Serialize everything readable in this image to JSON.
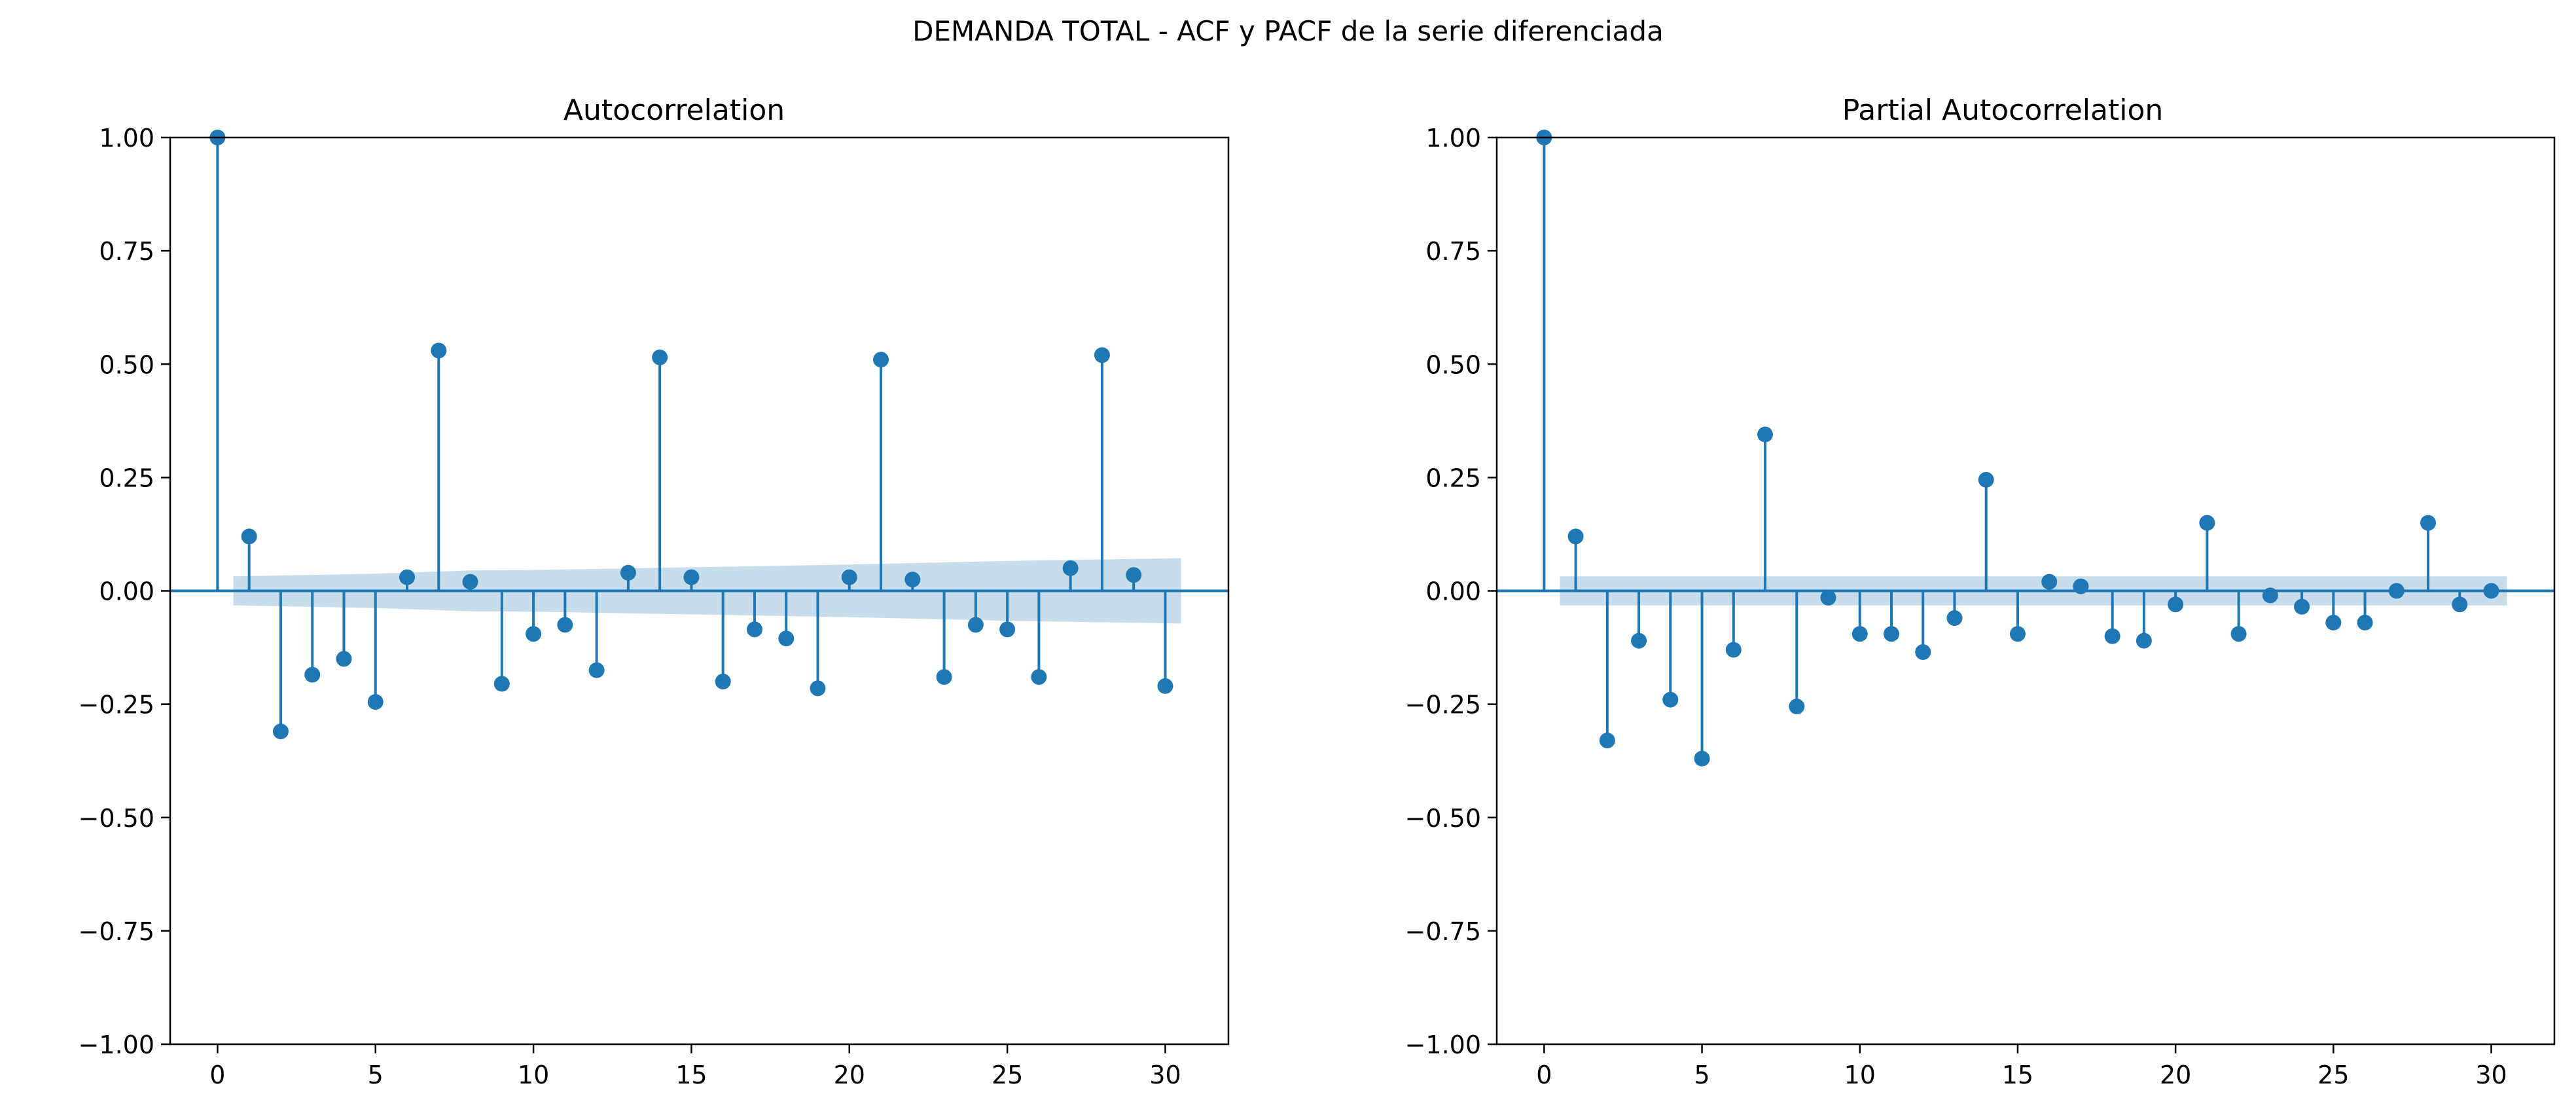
{
  "figure": {
    "suptitle": "DEMANDA TOTAL - ACF y PACF de la serie diferenciada"
  },
  "colors": {
    "stem": "#1f77b4",
    "band": "#1f77b4",
    "axis": "#000000",
    "background": "#ffffff"
  },
  "chart_data": [
    {
      "type": "stem",
      "title": "Autocorrelation",
      "xlabel": "",
      "ylabel": "",
      "xlim": [
        -1.5,
        32.0
      ],
      "ylim": [
        -1.0,
        1.0
      ],
      "xticks": [
        0,
        5,
        10,
        15,
        20,
        25,
        30
      ],
      "yticks": [
        -1.0,
        -0.75,
        -0.5,
        -0.25,
        0.0,
        0.25,
        0.5,
        0.75,
        1.0
      ],
      "xtick_labels": [
        "0",
        "5",
        "10",
        "15",
        "20",
        "25",
        "30"
      ],
      "ytick_labels": [
        "−1.00",
        "−0.75",
        "−0.50",
        "−0.25",
        "0.00",
        "0.25",
        "0.50",
        "0.75",
        "1.00"
      ],
      "lags": [
        0,
        1,
        2,
        3,
        4,
        5,
        6,
        7,
        8,
        9,
        10,
        11,
        12,
        13,
        14,
        15,
        16,
        17,
        18,
        19,
        20,
        21,
        22,
        23,
        24,
        25,
        26,
        27,
        28,
        29,
        30
      ],
      "values": [
        1.0,
        0.12,
        -0.31,
        -0.185,
        -0.15,
        -0.245,
        0.03,
        0.53,
        0.02,
        -0.205,
        -0.095,
        -0.075,
        -0.175,
        0.04,
        0.515,
        0.03,
        -0.2,
        -0.085,
        -0.105,
        -0.215,
        0.03,
        0.51,
        0.025,
        -0.19,
        -0.075,
        -0.085,
        -0.19,
        0.05,
        0.52,
        0.035,
        -0.21
      ],
      "confidence_band": {
        "lags": [
          0.5,
          2,
          5,
          8,
          10,
          15,
          20,
          25,
          30.5
        ],
        "upper": [
          0.032,
          0.034,
          0.038,
          0.045,
          0.046,
          0.052,
          0.058,
          0.066,
          0.072
        ],
        "lower": [
          -0.032,
          -0.034,
          -0.038,
          -0.045,
          -0.046,
          -0.052,
          -0.058,
          -0.066,
          -0.072
        ]
      }
    },
    {
      "type": "stem",
      "title": "Partial Autocorrelation",
      "xlabel": "",
      "ylabel": "",
      "xlim": [
        -1.5,
        32.0
      ],
      "ylim": [
        -1.0,
        1.0
      ],
      "xticks": [
        0,
        5,
        10,
        15,
        20,
        25,
        30
      ],
      "yticks": [
        -1.0,
        -0.75,
        -0.5,
        -0.25,
        0.0,
        0.25,
        0.5,
        0.75,
        1.0
      ],
      "xtick_labels": [
        "0",
        "5",
        "10",
        "15",
        "20",
        "25",
        "30"
      ],
      "ytick_labels": [
        "−1.00",
        "−0.75",
        "−0.50",
        "−0.25",
        "0.00",
        "0.25",
        "0.50",
        "0.75",
        "1.00"
      ],
      "lags": [
        0,
        1,
        2,
        3,
        4,
        5,
        6,
        7,
        8,
        9,
        10,
        11,
        12,
        13,
        14,
        15,
        16,
        17,
        18,
        19,
        20,
        21,
        22,
        23,
        24,
        25,
        26,
        27,
        28,
        29,
        30
      ],
      "values": [
        1.0,
        0.12,
        -0.33,
        -0.11,
        -0.24,
        -0.37,
        -0.13,
        0.345,
        -0.255,
        -0.015,
        -0.095,
        -0.095,
        -0.135,
        -0.06,
        0.245,
        -0.095,
        0.02,
        0.01,
        -0.1,
        -0.11,
        -0.03,
        0.15,
        -0.095,
        -0.01,
        -0.035,
        -0.07,
        -0.07,
        0.0,
        0.15,
        -0.03,
        0.0
      ],
      "confidence_band": {
        "lags": [
          0.5,
          30.5
        ],
        "upper": [
          0.032,
          0.032
        ],
        "lower": [
          -0.032,
          -0.032
        ]
      }
    }
  ]
}
